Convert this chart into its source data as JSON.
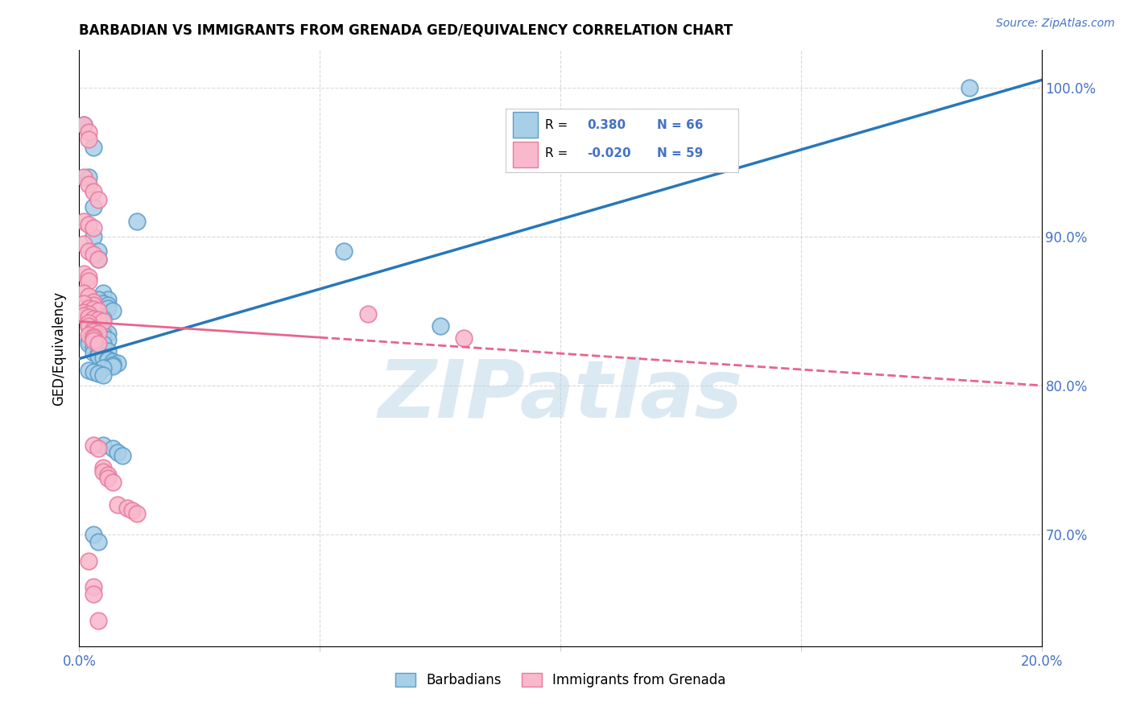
{
  "title": "BARBADIAN VS IMMIGRANTS FROM GRENADA GED/EQUIVALENCY CORRELATION CHART",
  "source": "Source: ZipAtlas.com",
  "ylabel": "GED/Equivalency",
  "xlim": [
    0.0,
    0.2
  ],
  "ylim": [
    0.625,
    1.025
  ],
  "x_ticks": [
    0.0,
    0.05,
    0.1,
    0.15,
    0.2
  ],
  "x_tick_labels": [
    "0.0%",
    "",
    "",
    "",
    "20.0%"
  ],
  "y_ticks": [
    0.7,
    0.8,
    0.9,
    1.0
  ],
  "y_tick_labels": [
    "70.0%",
    "80.0%",
    "90.0%",
    "100.0%"
  ],
  "legend_blue_label": "Barbadians",
  "legend_pink_label": "Immigrants from Grenada",
  "R_blue": "0.380",
  "N_blue": "66",
  "R_pink": "-0.020",
  "N_pink": "59",
  "blue_color": "#a8cfe8",
  "pink_color": "#f9b8cb",
  "blue_edge_color": "#5b9dc9",
  "pink_edge_color": "#e87aa0",
  "blue_line_color": "#2878b8",
  "pink_line_color": "#e8648c",
  "watermark_color": "#b8d4e8",
  "watermark": "ZIPatlas",
  "blue_line_x0": 0.0,
  "blue_line_y0": 0.818,
  "blue_line_x1": 0.2,
  "blue_line_y1": 1.005,
  "pink_line_x0": 0.0,
  "pink_line_y0": 0.843,
  "pink_line_x1": 0.2,
  "pink_line_y1": 0.8,
  "blue_scatter_x": [
    0.001,
    0.003,
    0.012,
    0.002,
    0.003,
    0.003,
    0.004,
    0.004,
    0.005,
    0.006,
    0.004,
    0.005,
    0.006,
    0.006,
    0.007,
    0.002,
    0.003,
    0.003,
    0.004,
    0.005,
    0.002,
    0.003,
    0.003,
    0.004,
    0.002,
    0.002,
    0.003,
    0.004,
    0.005,
    0.006,
    0.005,
    0.005,
    0.006,
    0.003,
    0.004,
    0.005,
    0.002,
    0.002,
    0.003,
    0.004,
    0.004,
    0.006,
    0.003,
    0.004,
    0.004,
    0.005,
    0.006,
    0.006,
    0.007,
    0.008,
    0.007,
    0.007,
    0.005,
    0.002,
    0.003,
    0.004,
    0.005,
    0.055,
    0.075,
    0.005,
    0.007,
    0.008,
    0.009,
    0.185,
    0.003,
    0.004
  ],
  "blue_scatter_y": [
    0.975,
    0.96,
    0.91,
    0.94,
    0.92,
    0.9,
    0.89,
    0.885,
    0.862,
    0.858,
    0.858,
    0.855,
    0.854,
    0.852,
    0.85,
    0.852,
    0.85,
    0.848,
    0.847,
    0.845,
    0.843,
    0.842,
    0.845,
    0.842,
    0.842,
    0.84,
    0.838,
    0.837,
    0.836,
    0.835,
    0.834,
    0.832,
    0.831,
    0.83,
    0.829,
    0.828,
    0.83,
    0.828,
    0.826,
    0.825,
    0.824,
    0.823,
    0.822,
    0.821,
    0.82,
    0.819,
    0.818,
    0.817,
    0.816,
    0.815,
    0.814,
    0.813,
    0.812,
    0.81,
    0.809,
    0.808,
    0.807,
    0.89,
    0.84,
    0.76,
    0.758,
    0.755,
    0.753,
    1.0,
    0.7,
    0.695
  ],
  "pink_scatter_x": [
    0.001,
    0.002,
    0.002,
    0.001,
    0.002,
    0.003,
    0.004,
    0.001,
    0.002,
    0.003,
    0.001,
    0.002,
    0.003,
    0.004,
    0.001,
    0.002,
    0.002,
    0.001,
    0.002,
    0.003,
    0.003,
    0.001,
    0.002,
    0.003,
    0.004,
    0.001,
    0.002,
    0.001,
    0.002,
    0.003,
    0.004,
    0.005,
    0.002,
    0.002,
    0.003,
    0.003,
    0.004,
    0.002,
    0.003,
    0.003,
    0.06,
    0.08,
    0.003,
    0.004,
    0.003,
    0.004,
    0.005,
    0.005,
    0.006,
    0.006,
    0.007,
    0.008,
    0.01,
    0.011,
    0.012,
    0.002,
    0.003,
    0.003,
    0.004
  ],
  "pink_scatter_y": [
    0.975,
    0.97,
    0.965,
    0.94,
    0.935,
    0.93,
    0.925,
    0.91,
    0.908,
    0.906,
    0.895,
    0.89,
    0.888,
    0.885,
    0.875,
    0.873,
    0.87,
    0.862,
    0.86,
    0.856,
    0.854,
    0.855,
    0.852,
    0.851,
    0.85,
    0.849,
    0.848,
    0.847,
    0.846,
    0.845,
    0.844,
    0.843,
    0.842,
    0.84,
    0.838,
    0.836,
    0.835,
    0.834,
    0.833,
    0.832,
    0.848,
    0.832,
    0.83,
    0.828,
    0.76,
    0.758,
    0.745,
    0.742,
    0.74,
    0.738,
    0.735,
    0.72,
    0.718,
    0.716,
    0.714,
    0.682,
    0.665,
    0.66,
    0.642
  ]
}
